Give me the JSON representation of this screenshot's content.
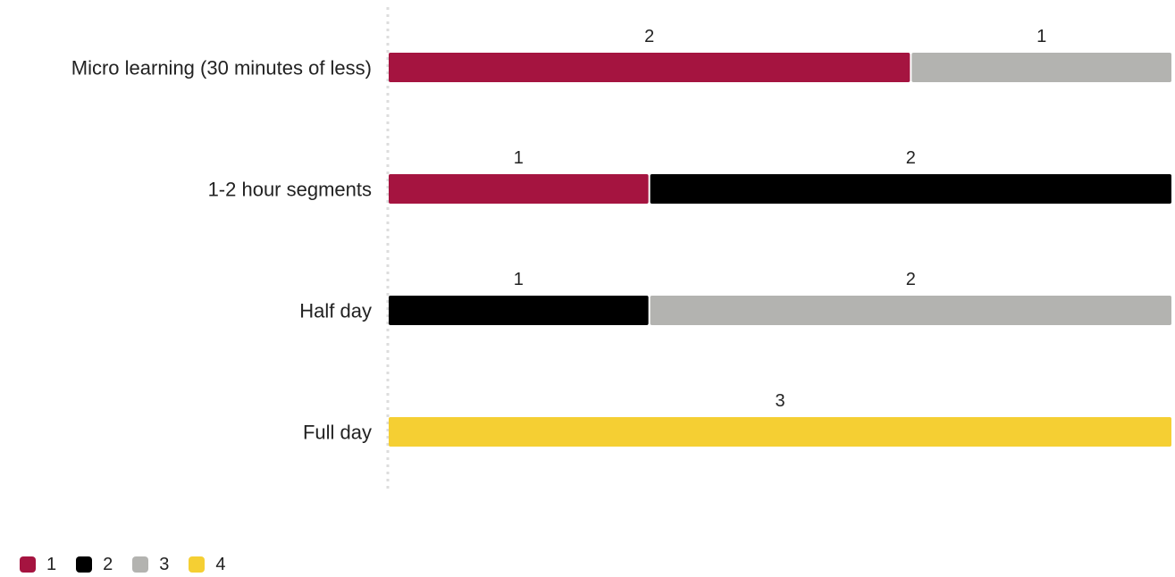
{
  "chart_data": {
    "type": "bar",
    "orientation": "horizontal",
    "stacked": true,
    "normalized": true,
    "categories": [
      "Micro learning (30 minutes of less)",
      "1-2 hour segments",
      "Half day",
      "Full day"
    ],
    "series": [
      {
        "name": "1",
        "color": "#a51440",
        "values": [
          2,
          1,
          0,
          0
        ]
      },
      {
        "name": "2",
        "color": "#000000",
        "values": [
          0,
          2,
          1,
          0
        ]
      },
      {
        "name": "3",
        "color": "#b3b3b0",
        "values": [
          1,
          0,
          2,
          0
        ]
      },
      {
        "name": "4",
        "color": "#f5cf33",
        "values": [
          0,
          0,
          0,
          3
        ]
      }
    ],
    "xlim": [
      0,
      1
    ],
    "grid": false,
    "legend_position": "bottom-left"
  }
}
